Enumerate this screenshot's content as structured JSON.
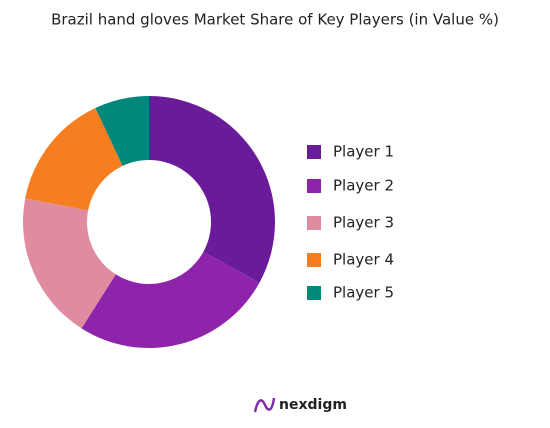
{
  "chart_data": {
    "type": "pie",
    "title": "Brazil hand gloves Market Share of Key Players (in Value %)",
    "categories": [
      "Player 1",
      "Player 2",
      "Player 3",
      "Player 4",
      "Player 5"
    ],
    "values": [
      33,
      26,
      19,
      15,
      7
    ],
    "colors": [
      "#6a1b9a",
      "#8e24aa",
      "#e08ca0",
      "#f57f20",
      "#00897b"
    ],
    "legend": "right"
  },
  "footer": {
    "brand": "nexdigm"
  }
}
